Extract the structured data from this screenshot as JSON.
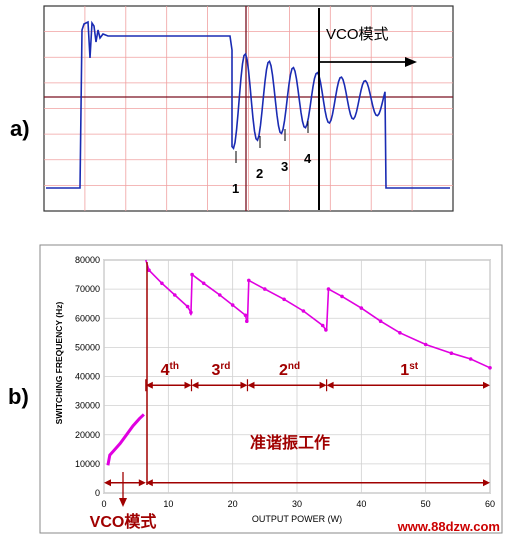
{
  "panel_a": {
    "label": "a)",
    "vco_label": "VCO模式",
    "valley_labels": [
      "1",
      "2",
      "3",
      "4"
    ]
  },
  "panel_b": {
    "label": "b)",
    "vco_label": "VCO模式",
    "qr_label": "准谐振工作",
    "valley_labels": [
      "4th",
      "3rd",
      "2nd",
      "1st"
    ]
  },
  "watermark": "www.88dzw.com",
  "chart_data": [
    {
      "type": "line",
      "title": "",
      "description_values": "oscilloscope-style waveform (no printed axes)",
      "annotations": [
        "VCO模式",
        "1",
        "2",
        "3",
        "4"
      ],
      "grid": true
    },
    {
      "type": "line",
      "title": "",
      "xlabel": "OUTPUT POWER (W)",
      "ylabel": "SWITCHING FREQUENCY (Hz)",
      "xlim": [
        0,
        60
      ],
      "ylim": [
        0,
        80000
      ],
      "x_ticks": [
        0,
        10,
        20,
        30,
        40,
        50,
        60
      ],
      "y_ticks": [
        0,
        10000,
        20000,
        30000,
        40000,
        50000,
        60000,
        70000,
        80000
      ],
      "grid": true,
      "series": [
        {
          "segments": [
            [
              [
                0.6,
                9500
              ],
              [
                0.9,
                13000
              ],
              [
                1.5,
                14500
              ],
              [
                2.5,
                17000
              ],
              [
                3.5,
                20000
              ],
              [
                4.5,
                23000
              ],
              [
                5.5,
                25500
              ],
              [
                6.2,
                27000
              ]
            ],
            [
              [
                6.5,
                80000
              ],
              [
                7.0,
                76500
              ],
              [
                9.0,
                72000
              ],
              [
                11.0,
                68000
              ],
              [
                13.0,
                64000
              ],
              [
                13.5,
                62000
              ]
            ],
            [
              [
                13.5,
                61000
              ],
              [
                13.7,
                75000
              ],
              [
                15.5,
                72000
              ],
              [
                18.0,
                68000
              ],
              [
                20.0,
                64500
              ],
              [
                22.0,
                61000
              ],
              [
                22.2,
                59000
              ]
            ],
            [
              [
                22.3,
                59000
              ],
              [
                22.5,
                73000
              ],
              [
                25.0,
                70000
              ],
              [
                28.0,
                66500
              ],
              [
                31.0,
                62500
              ],
              [
                34.0,
                57500
              ],
              [
                34.5,
                56000
              ]
            ],
            [
              [
                34.6,
                56000
              ],
              [
                34.9,
                70000
              ],
              [
                37.0,
                67500
              ],
              [
                40.0,
                63500
              ],
              [
                43.0,
                59000
              ],
              [
                46.0,
                55000
              ],
              [
                50.0,
                51000
              ],
              [
                54.0,
                48000
              ],
              [
                57.0,
                46000
              ],
              [
                60.0,
                43000
              ]
            ]
          ]
        }
      ],
      "annotations": [
        "4th",
        "3rd",
        "2nd",
        "1st",
        "准谐振工作",
        "VCO模式"
      ]
    }
  ]
}
